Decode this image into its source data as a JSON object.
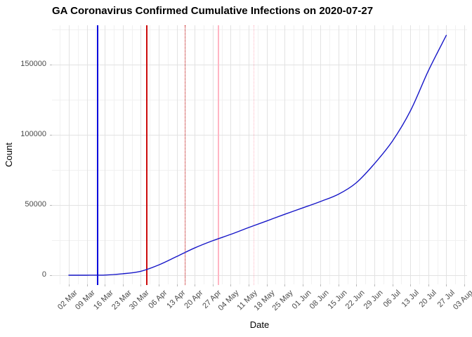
{
  "title": "GA Coronavirus Confirmed Cumulative Infections on 2020-07-27",
  "chart_data": {
    "type": "line",
    "title": "GA Coronavirus Confirmed Cumulative Infections on 2020-07-27",
    "xlabel": "Date",
    "ylabel": "Count",
    "x_tick_labels": [
      "02 Mar",
      "09 Mar",
      "16 Mar",
      "23 Mar",
      "30 Mar",
      "06 Apr",
      "13 Apr",
      "20 Apr",
      "27 Apr",
      "04 May",
      "11 May",
      "18 May",
      "25 May",
      "01 Jun",
      "08 Jun",
      "15 Jun",
      "22 Jun",
      "29 Jun",
      "06 Jul",
      "13 Jul",
      "20 Jul",
      "27 Jul",
      "03 Aug"
    ],
    "x_tick_dates": [
      "2020-03-02",
      "2020-03-09",
      "2020-03-16",
      "2020-03-23",
      "2020-03-30",
      "2020-04-06",
      "2020-04-13",
      "2020-04-20",
      "2020-04-27",
      "2020-05-04",
      "2020-05-11",
      "2020-05-18",
      "2020-05-25",
      "2020-06-01",
      "2020-06-08",
      "2020-06-15",
      "2020-06-22",
      "2020-06-29",
      "2020-07-06",
      "2020-07-13",
      "2020-07-20",
      "2020-07-27",
      "2020-08-03"
    ],
    "y_tick_labels": [
      "0",
      "50000",
      "100000",
      "150000"
    ],
    "y_tick_values": [
      0,
      50000,
      100000,
      150000
    ],
    "y_minor_values": [
      25000,
      75000,
      125000,
      175000
    ],
    "x_range_dates": [
      "2020-03-02",
      "2020-08-03"
    ],
    "ylim": [
      0,
      178000
    ],
    "grid": "major+minor",
    "legend": "none",
    "colors": {
      "series_line": "#1616c8",
      "vline_blue": "#0202dd",
      "vline_red": "#cc0b0b",
      "vline_pink": "#ffb6c4",
      "grid_major": "#e2e2e2",
      "grid_minor": "#f1f1f1",
      "tick_text": "#4a4a4a"
    },
    "series": [
      {
        "name": "GA confirmed cumulative infections",
        "color": "#1616c8",
        "points": [
          [
            "2020-03-02",
            2
          ],
          [
            "2020-03-09",
            17
          ],
          [
            "2020-03-16",
            121
          ],
          [
            "2020-03-23",
            1026
          ],
          [
            "2020-03-30",
            2809
          ],
          [
            "2020-04-06",
            7314
          ],
          [
            "2020-04-13",
            13315
          ],
          [
            "2020-04-20",
            19407
          ],
          [
            "2020-04-27",
            24551
          ],
          [
            "2020-05-04",
            29045
          ],
          [
            "2020-05-11",
            33927
          ],
          [
            "2020-05-18",
            38624
          ],
          [
            "2020-05-25",
            43344
          ],
          [
            "2020-06-01",
            47899
          ],
          [
            "2020-06-08",
            52497
          ],
          [
            "2020-06-15",
            57681
          ],
          [
            "2020-06-22",
            65928
          ],
          [
            "2020-06-29",
            79417
          ],
          [
            "2020-07-06",
            95516
          ],
          [
            "2020-07-13",
            116926
          ],
          [
            "2020-07-20",
            145575
          ],
          [
            "2020-07-27",
            170843
          ]
        ]
      }
    ],
    "event_vlines": [
      {
        "date": "2020-03-13",
        "color": "#0202dd",
        "style": "solid"
      },
      {
        "date": "2020-04-01",
        "color": "#cc0b0b",
        "style": "solid"
      },
      {
        "date": "2020-04-16",
        "color": "#cc0b0b",
        "style": "dotted"
      },
      {
        "date": "2020-04-29",
        "color": "#ffb6c4",
        "style": "solid"
      },
      {
        "date": "2020-05-13",
        "color": "#ffb6c4",
        "style": "dotted"
      }
    ]
  }
}
